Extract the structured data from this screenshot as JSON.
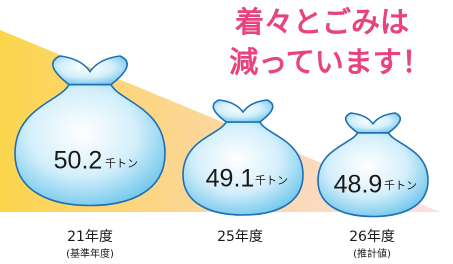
{
  "header": {
    "title_lines": [
      "着々とごみは",
      "減っています！"
    ]
  },
  "items": [
    {
      "value": "50.2",
      "unit": "千トン",
      "label": "21年度",
      "note": "(基準年度)"
    },
    {
      "value": "49.1",
      "unit": "千トン",
      "label": "25年度"
    },
    {
      "value": "48.9",
      "unit": "千トン",
      "label": "26年度",
      "note": "(推計値)"
    }
  ]
}
